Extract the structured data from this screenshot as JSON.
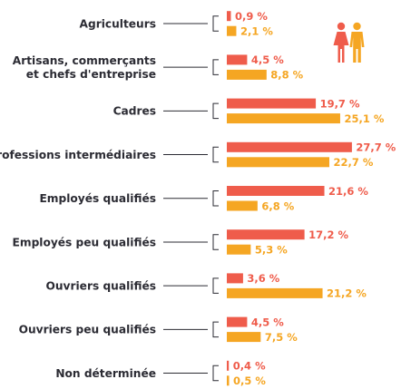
{
  "chart_data": {
    "type": "bar",
    "orientation": "horizontal",
    "categories": [
      [
        "Agriculteurs"
      ],
      [
        "Artisans, commerçants",
        "et chefs d'entreprise"
      ],
      [
        "Cadres"
      ],
      [
        "Professions intermédiaires"
      ],
      [
        "Employés qualifiés"
      ],
      [
        "Employés peu qualifiés"
      ],
      [
        "Ouvriers qualifiés"
      ],
      [
        "Ouvriers peu qualifiés"
      ],
      [
        "Non déterminée"
      ]
    ],
    "series": [
      {
        "color": "#ef5c4b",
        "values": [
          0.9,
          4.5,
          19.7,
          27.7,
          21.6,
          17.2,
          3.6,
          4.5,
          0.4
        ],
        "labels": [
          "0,9 %",
          "4,5 %",
          "19,7 %",
          "27,7 %",
          "21,6 %",
          "17,2 %",
          "3,6 %",
          "4,5 %",
          "0,4 %"
        ]
      },
      {
        "color": "#f5a623",
        "values": [
          2.1,
          8.8,
          25.1,
          22.7,
          6.8,
          5.3,
          21.2,
          7.5,
          0.5
        ],
        "labels": [
          "2,1 %",
          "8,8 %",
          "25,1 %",
          "22,7 %",
          "6,8 %",
          "5,3 %",
          "21,2 %",
          "7,5 %",
          "0,5 %"
        ]
      }
    ],
    "legend_icons": [
      {
        "icon": "woman-icon",
        "color": "#ef5c4b"
      },
      {
        "icon": "man-icon",
        "color": "#f5a623"
      }
    ],
    "xlim": [
      0,
      28
    ]
  }
}
